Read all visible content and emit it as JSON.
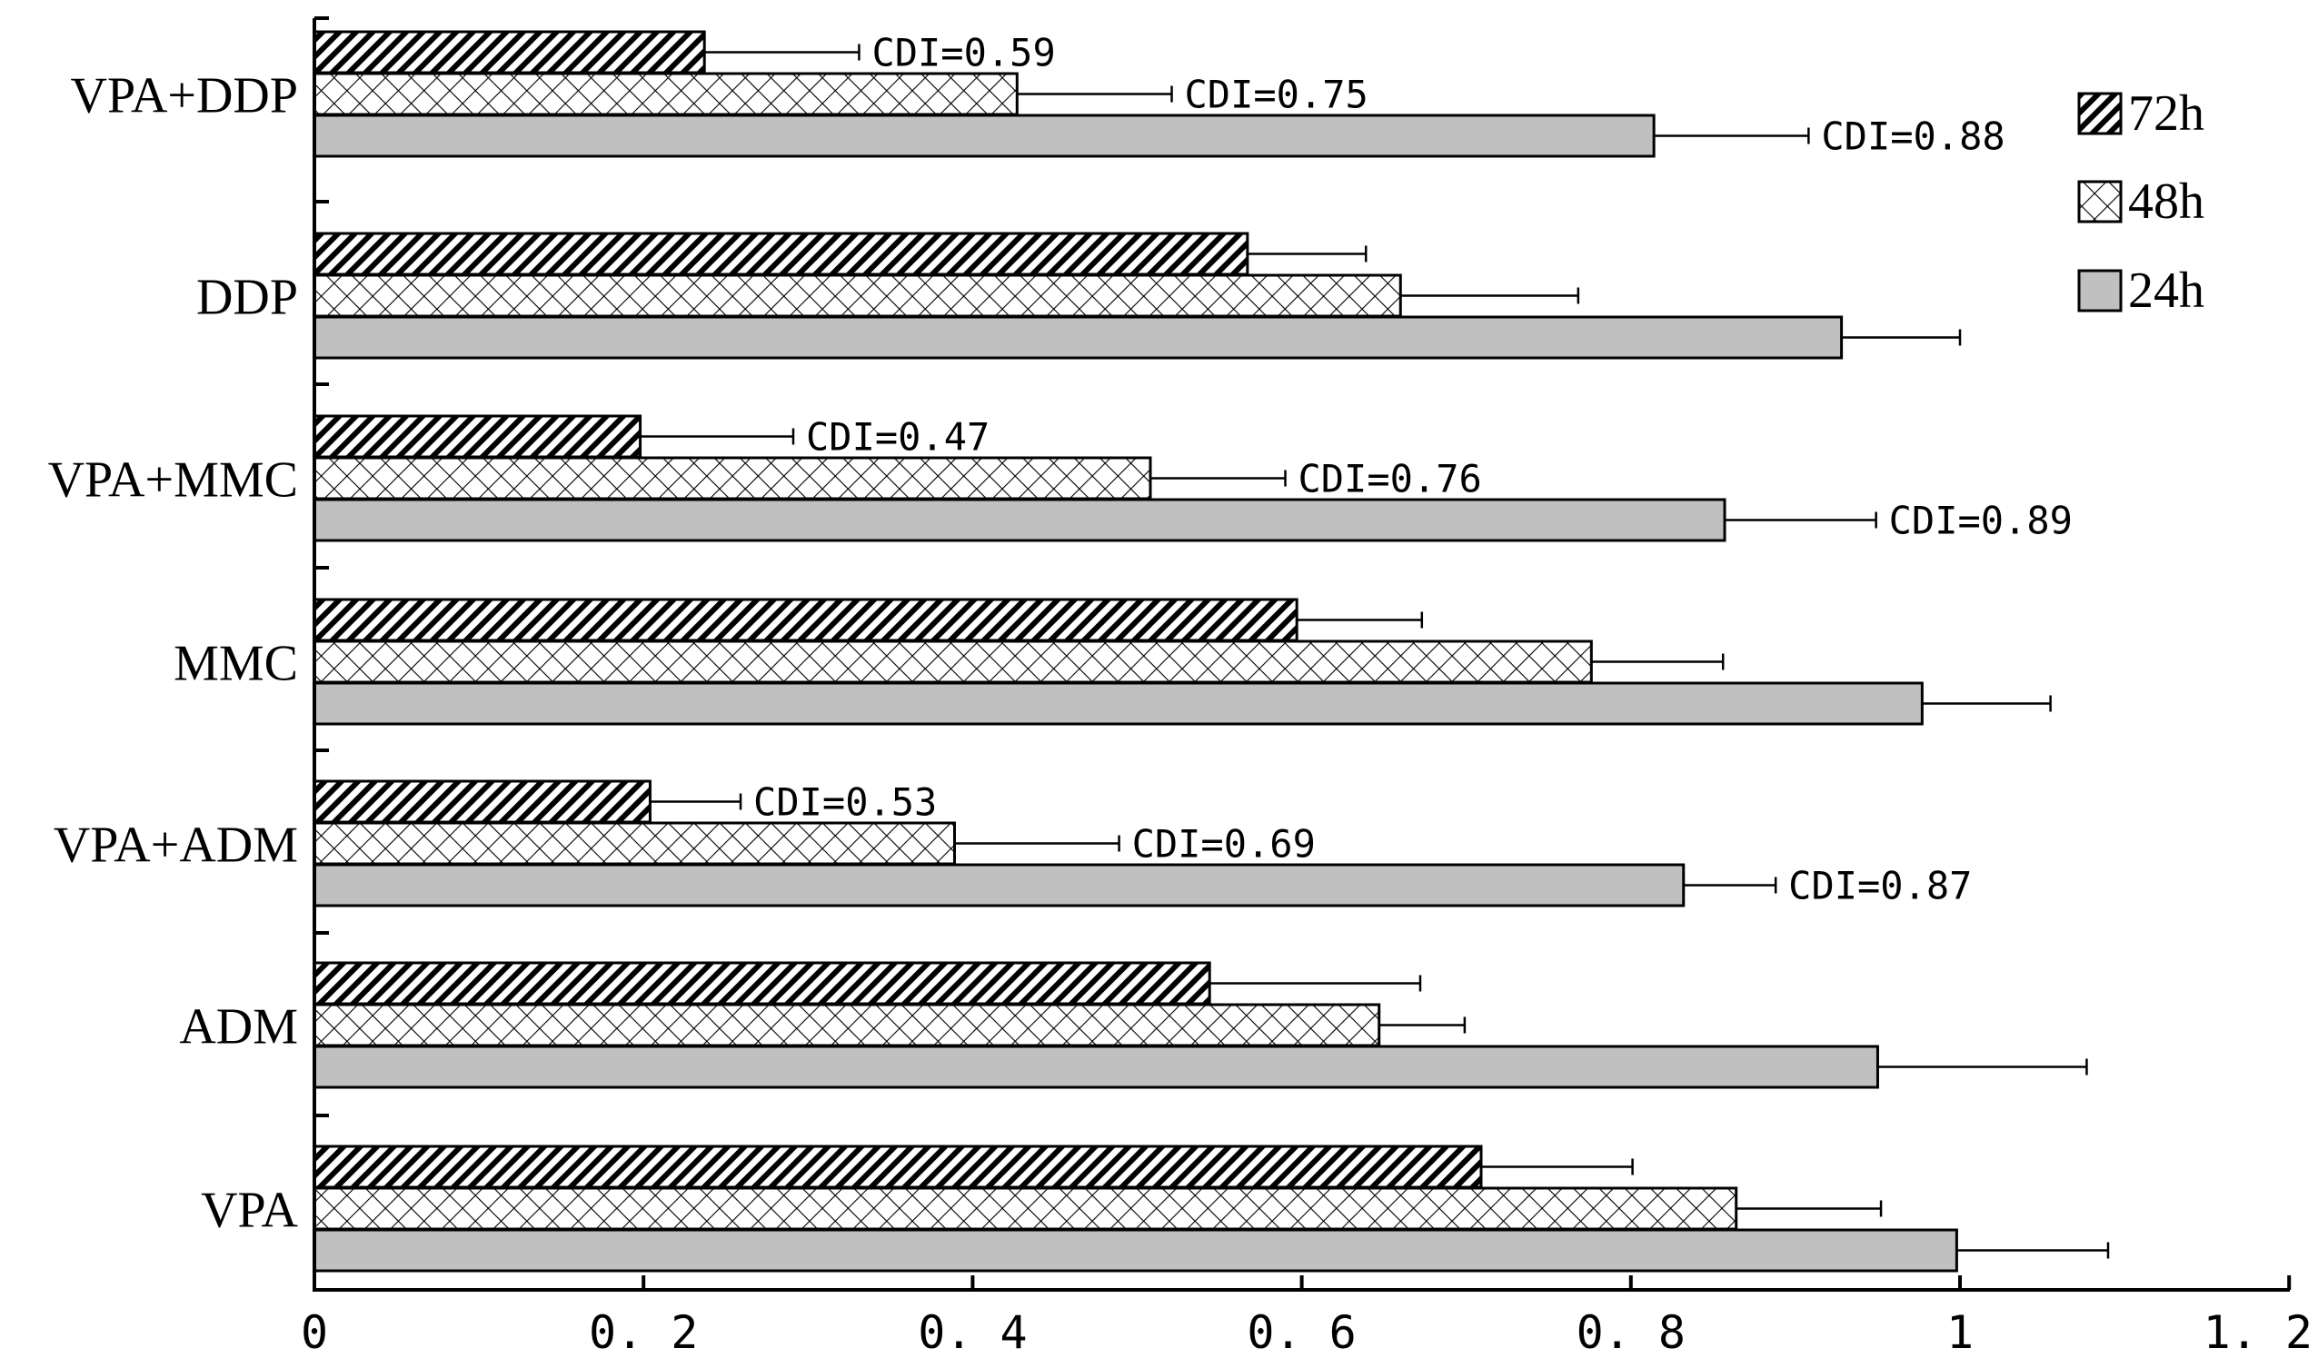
{
  "chart_data": {
    "type": "bar",
    "orientation": "horizontal",
    "categories": [
      "VPA+DDP",
      "DDP",
      "VPA+MMC",
      "MMC",
      "VPA+ADM",
      "ADM",
      "VPA"
    ],
    "series": [
      {
        "name": "72h",
        "pattern": "diagonal-hatch",
        "values": [
          0.237,
          0.567,
          0.198,
          0.597,
          0.204,
          0.544,
          0.709
        ],
        "errors": [
          0.094,
          0.072,
          0.093,
          0.076,
          0.055,
          0.128,
          0.092
        ],
        "annotations": [
          "CDI=0.59",
          "",
          "CDI=0.47",
          "",
          "CDI=0.53",
          "",
          ""
        ]
      },
      {
        "name": "48h",
        "pattern": "crosshatch",
        "values": [
          0.427,
          0.66,
          0.508,
          0.776,
          0.389,
          0.647,
          0.864
        ],
        "errors": [
          0.094,
          0.108,
          0.082,
          0.08,
          0.1,
          0.052,
          0.088
        ],
        "annotations": [
          "CDI=0.75",
          "",
          "CDI=0.76",
          "",
          "CDI=0.69",
          "",
          ""
        ]
      },
      {
        "name": "24h",
        "pattern": "solid-gray",
        "color": "#c0c0c0",
        "values": [
          0.814,
          0.928,
          0.857,
          0.977,
          0.832,
          0.95,
          0.998
        ],
        "errors": [
          0.094,
          0.072,
          0.092,
          0.078,
          0.056,
          0.127,
          0.092
        ],
        "annotations": [
          "CDI=0.88",
          "",
          "CDI=0.89",
          "",
          "CDI=0.87",
          "",
          ""
        ]
      }
    ],
    "x_ticks": [
      "0",
      "0. 2",
      "0. 4",
      "0. 6",
      "0. 8",
      "1",
      "1. 2"
    ],
    "xlim": [
      0,
      1.2
    ],
    "legend": [
      "72h",
      "48h",
      "24h"
    ],
    "legend_position": "top-right",
    "grid": false
  }
}
